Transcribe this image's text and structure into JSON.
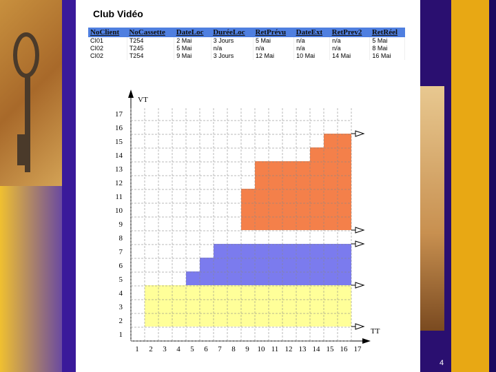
{
  "title": "Club Vidéo",
  "table": {
    "header": [
      "NoClient",
      "NoCassette",
      "DateLoc",
      "DuréeLoc",
      "RetPrévu",
      "DateExt",
      "RetPrev2",
      "RetRéel"
    ],
    "rows": [
      [
        "CI01",
        "T254",
        "2 Mai",
        "3 Jours",
        "5 Mai",
        "n/a",
        "n/a",
        "5 Mai"
      ],
      [
        "CI02",
        "T245",
        "5 Mai",
        "n/a",
        "n/a",
        "n/a",
        "n/a",
        "8 Mai"
      ],
      [
        "CI02",
        "T254",
        "9 Mai",
        "3 Jours",
        "12 Mai",
        "10 Mai",
        "14 Mai",
        "16 Mai"
      ]
    ]
  },
  "diagram": {
    "y_axis_label": "VT",
    "x_axis_label": "TT",
    "x_ticks": [
      1,
      2,
      3,
      4,
      5,
      6,
      7,
      8,
      9,
      10,
      11,
      12,
      13,
      14,
      15,
      16,
      17
    ],
    "y_ticks": [
      1,
      2,
      3,
      4,
      5,
      6,
      7,
      8,
      9,
      10,
      11,
      12,
      13,
      14,
      15,
      16,
      17
    ]
  },
  "page_number": "4"
}
